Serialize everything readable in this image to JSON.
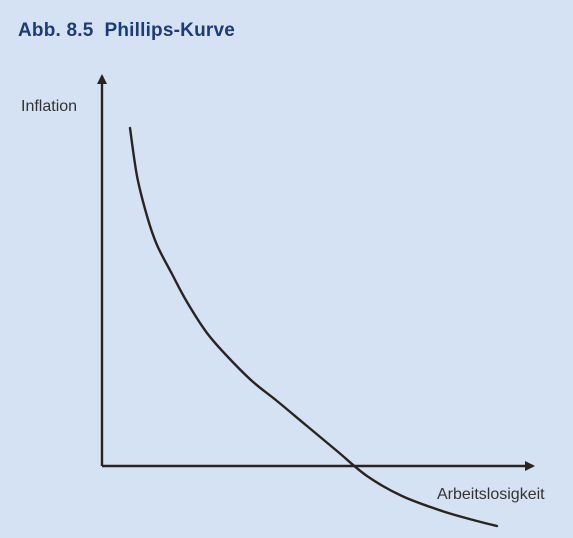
{
  "figure": {
    "title": "Abb. 8.5  Phillips-Kurve"
  },
  "chart_data": {
    "type": "line",
    "title": "Abb. 8.5  Phillips-Kurve",
    "xlabel": "Arbeitslosigkeit",
    "ylabel": "Inflation",
    "grid": false,
    "legend": "none",
    "axis_ticks": "none",
    "x_range": [
      0,
      420
    ],
    "y_range": [
      -65,
      400
    ],
    "series": [
      {
        "name": "",
        "color": "#2b2320",
        "points": [
          [
            28,
            338
          ],
          [
            35,
            290
          ],
          [
            45,
            250
          ],
          [
            55,
            221
          ],
          [
            70,
            192
          ],
          [
            85,
            164
          ],
          [
            105,
            133
          ],
          [
            125,
            110
          ],
          [
            150,
            85
          ],
          [
            175,
            65
          ],
          [
            205,
            40
          ],
          [
            235,
            15
          ],
          [
            265,
            -10
          ],
          [
            300,
            -30
          ],
          [
            340,
            -45
          ],
          [
            375,
            -55
          ],
          [
            395,
            -60
          ]
        ]
      }
    ],
    "colors": {
      "background": "#d5e2f3",
      "title": "#1a3c7e",
      "axes": "#2b2320"
    }
  }
}
